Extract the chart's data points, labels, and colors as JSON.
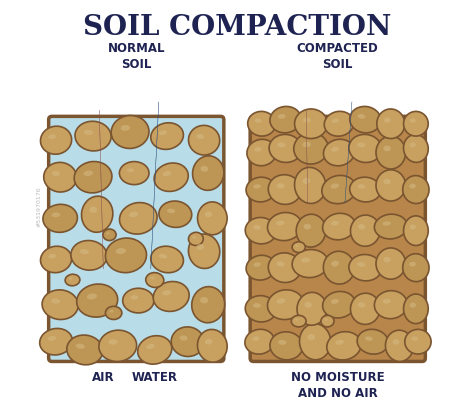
{
  "title": "SOIL COMPACTION",
  "title_fontsize": 20,
  "title_color": "#1e2352",
  "bg_color": "#ffffff",
  "left_label": "NORMAL\nSOIL",
  "right_label": "COMPACTED\nSOIL",
  "left_sublabel_air": "AIR",
  "left_sublabel_water": "WATER",
  "right_sublabel": "NO MOISTURE\nAND NO AIR",
  "normal_bg": "#b8dde8",
  "compacted_bg": "#b8864a",
  "stone_fill": "#c8a060",
  "stone_fill2": "#bd9555",
  "stone_edge": "#7a5530",
  "stone_highlight": "#d4b880",
  "arrow_air_color": "#e87878",
  "arrow_water_color": "#3a7ad4",
  "arrow_outline": "#2a2a2a",
  "label_color": "#1e2352",
  "label_fontsize": 8.5,
  "sub_label_fontsize": 8.5,
  "watermark_color": "#bbbbbb",
  "panel_edge_color": "#7a5530",
  "panel_lw": 2.5
}
